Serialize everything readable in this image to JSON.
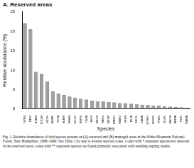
{
  "chart_data": {
    "type": "bar",
    "title": "A. Reserved areas",
    "x_label": "Species",
    "y_label": "Relative abundance (%)",
    "categories": [
      "OVEN",
      "REVI",
      "BTBW",
      "BTGW",
      "HETH",
      "AMRE",
      "SCTA",
      "BLBW",
      "WIWR",
      "BCCH",
      "SWTH",
      "YBSA",
      "BHVI",
      "BRCR",
      "RBNU",
      "WTSP",
      "WBNU",
      "HAWO",
      "VEER",
      "BLJA",
      "DEJU",
      "CAWA",
      "DOWO",
      "WOTH",
      "PIWO",
      "NOFL",
      "RBGR",
      "BBWA",
      "PUFI",
      "MAWA"
    ],
    "values": [
      22,
      20.5,
      9.5,
      9,
      7,
      4.5,
      4,
      3.6,
      3.2,
      2.9,
      2.6,
      2.4,
      2.2,
      2,
      1.9,
      1.8,
      1.7,
      1.5,
      1.4,
      1.3,
      1.2,
      1.1,
      1,
      0.9,
      0.8,
      0.7,
      0.6,
      0.5,
      0.4,
      0.3
    ],
    "color": "#a0a0a0",
    "ylim": [
      0,
      25
    ],
    "yticks": [
      0,
      5,
      10,
      15,
      20,
      25
    ],
    "grid": false,
    "annotations": [
      "Fig. 1. Relative abundances of bird species present on (A) reserved and (B) managed areas in the White Mountain National Forest, New Hampshire, 1989–1990. See Table 1 for key to 4-letter species codes. Codes with * represent species not detected in the reserved areas; codes with ** represent species we found primarily associated with seedling-sapling stands."
    ]
  }
}
